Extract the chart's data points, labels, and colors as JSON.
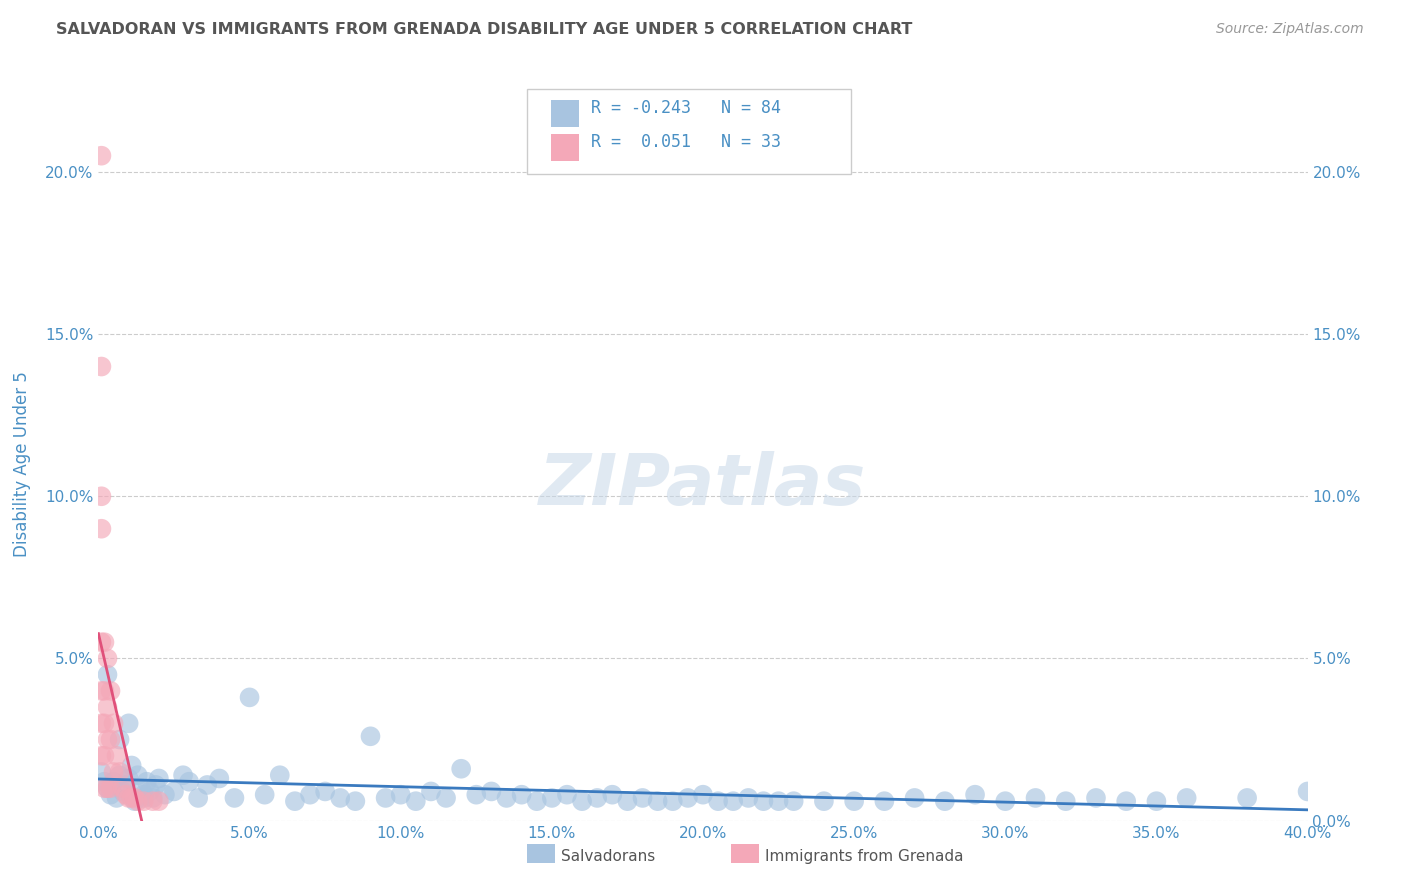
{
  "title": "SALVADORAN VS IMMIGRANTS FROM GRENADA DISABILITY AGE UNDER 5 CORRELATION CHART",
  "source": "Source: ZipAtlas.com",
  "ylabel": "Disability Age Under 5",
  "legend_label1": "Salvadorans",
  "legend_label2": "Immigrants from Grenada",
  "r1": -0.243,
  "n1": 84,
  "r2": 0.051,
  "n2": 33,
  "color1": "#a8c4e0",
  "color1_line": "#3a7abf",
  "color2": "#f4a8b8",
  "color2_line": "#e0507a",
  "color2_dash": "#e8a0b0",
  "title_color": "#555555",
  "axis_label_color": "#4a90c4",
  "watermark": "ZIPatlas",
  "xlim": [
    0.0,
    0.4
  ],
  "ylim": [
    0.0,
    0.22
  ],
  "xticks": [
    0.0,
    0.05,
    0.1,
    0.15,
    0.2,
    0.25,
    0.3,
    0.35,
    0.4
  ],
  "yticks": [
    0.0,
    0.05,
    0.1,
    0.15,
    0.2
  ],
  "blue_x": [
    0.001,
    0.002,
    0.003,
    0.004,
    0.005,
    0.006,
    0.007,
    0.008,
    0.009,
    0.01,
    0.011,
    0.012,
    0.013,
    0.014,
    0.015,
    0.016,
    0.017,
    0.018,
    0.019,
    0.02,
    0.022,
    0.025,
    0.028,
    0.03,
    0.033,
    0.036,
    0.04,
    0.045,
    0.05,
    0.055,
    0.06,
    0.065,
    0.07,
    0.075,
    0.08,
    0.085,
    0.09,
    0.095,
    0.1,
    0.105,
    0.11,
    0.115,
    0.12,
    0.125,
    0.13,
    0.135,
    0.14,
    0.145,
    0.15,
    0.155,
    0.16,
    0.165,
    0.17,
    0.175,
    0.18,
    0.185,
    0.19,
    0.195,
    0.2,
    0.205,
    0.21,
    0.215,
    0.22,
    0.225,
    0.23,
    0.24,
    0.25,
    0.26,
    0.27,
    0.28,
    0.29,
    0.3,
    0.31,
    0.32,
    0.33,
    0.34,
    0.35,
    0.36,
    0.38,
    0.4,
    0.003,
    0.007,
    0.01,
    0.015
  ],
  "blue_y": [
    0.015,
    0.012,
    0.01,
    0.008,
    0.012,
    0.007,
    0.014,
    0.009,
    0.011,
    0.013,
    0.017,
    0.006,
    0.014,
    0.01,
    0.008,
    0.012,
    0.009,
    0.007,
    0.011,
    0.013,
    0.008,
    0.009,
    0.014,
    0.012,
    0.007,
    0.011,
    0.013,
    0.007,
    0.038,
    0.008,
    0.014,
    0.006,
    0.008,
    0.009,
    0.007,
    0.006,
    0.026,
    0.007,
    0.008,
    0.006,
    0.009,
    0.007,
    0.016,
    0.008,
    0.009,
    0.007,
    0.008,
    0.006,
    0.007,
    0.008,
    0.006,
    0.007,
    0.008,
    0.006,
    0.007,
    0.006,
    0.006,
    0.007,
    0.008,
    0.006,
    0.006,
    0.007,
    0.006,
    0.006,
    0.006,
    0.006,
    0.006,
    0.006,
    0.007,
    0.006,
    0.008,
    0.006,
    0.007,
    0.006,
    0.007,
    0.006,
    0.006,
    0.007,
    0.007,
    0.009,
    0.045,
    0.025,
    0.03,
    0.007
  ],
  "pink_x": [
    0.001,
    0.001,
    0.001,
    0.001,
    0.001,
    0.001,
    0.001,
    0.001,
    0.002,
    0.002,
    0.002,
    0.002,
    0.002,
    0.003,
    0.003,
    0.003,
    0.003,
    0.004,
    0.004,
    0.004,
    0.005,
    0.005,
    0.006,
    0.007,
    0.008,
    0.009,
    0.01,
    0.011,
    0.012,
    0.013,
    0.015,
    0.018,
    0.02
  ],
  "pink_y": [
    0.205,
    0.14,
    0.1,
    0.09,
    0.055,
    0.04,
    0.03,
    0.02,
    0.055,
    0.04,
    0.03,
    0.02,
    0.01,
    0.05,
    0.035,
    0.025,
    0.01,
    0.04,
    0.025,
    0.01,
    0.03,
    0.015,
    0.02,
    0.015,
    0.01,
    0.008,
    0.007,
    0.007,
    0.007,
    0.006,
    0.006,
    0.006,
    0.006
  ]
}
